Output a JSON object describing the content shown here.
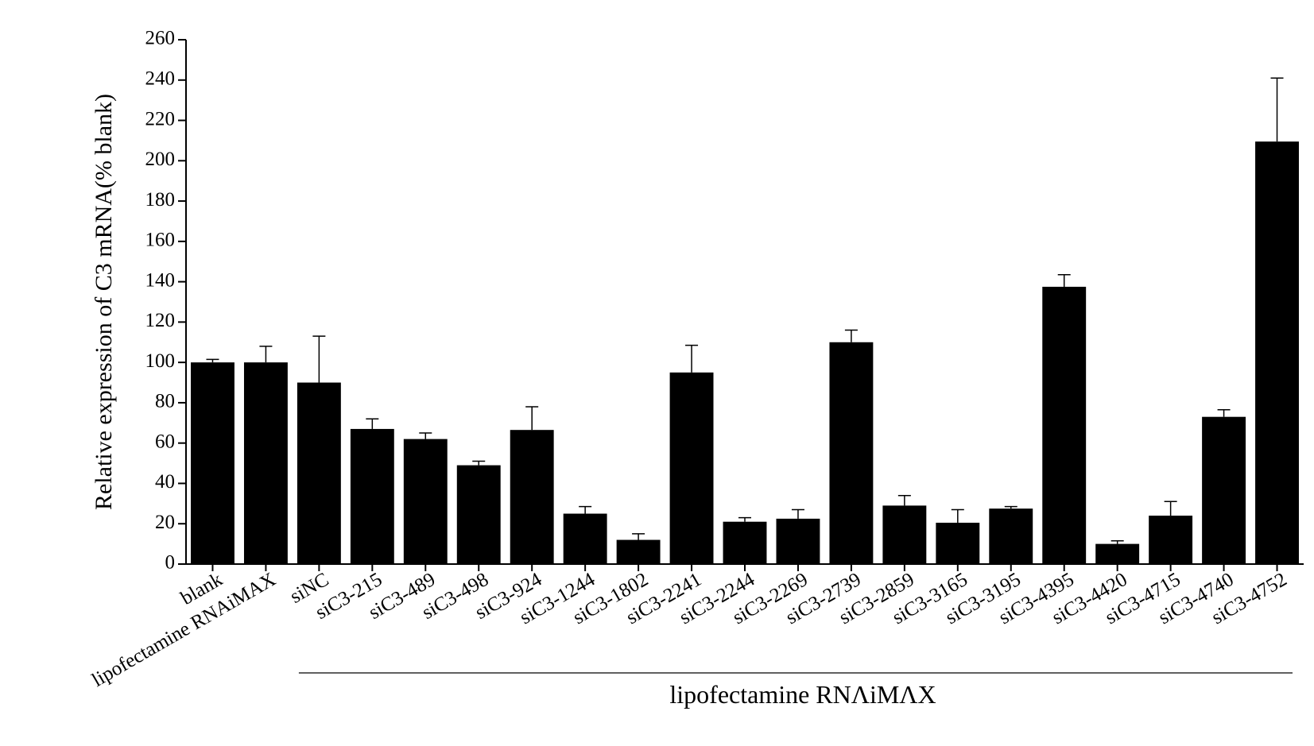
{
  "chart_data": {
    "type": "bar",
    "y_label": "Relative expression of C3 mRNA(% blank)",
    "group_label": "lipofectamine RNΛiMΛX",
    "categories": [
      "blank",
      "lipofectamine RNAiMAX",
      "siNC",
      "siC3-215",
      "siC3-489",
      "siC3-498",
      "siC3-924",
      "siC3-1244",
      "siC3-1802",
      "siC3-2241",
      "siC3-2244",
      "siC3-2269",
      "siC3-2739",
      "siC3-2859",
      "siC3-3165",
      "siC3-3195",
      "siC3-4395",
      "siC3-4420",
      "siC3-4715",
      "siC3-4740",
      "siC3-4752"
    ],
    "values": [
      100,
      100,
      90,
      67,
      62,
      49,
      66.5,
      25,
      12,
      95,
      21,
      22.5,
      110,
      29,
      20.5,
      27.5,
      137.5,
      10,
      24,
      73,
      209.5
    ],
    "errors": [
      1.5,
      8,
      23,
      5,
      3,
      2,
      11.5,
      3.5,
      3,
      13.5,
      2,
      4.5,
      6,
      5,
      6.5,
      1,
      6,
      1.5,
      7,
      3.5,
      31.5
    ],
    "color": "#000000",
    "ylim": [
      0,
      260
    ],
    "yticks": [
      0,
      20,
      40,
      60,
      80,
      100,
      120,
      140,
      160,
      180,
      200,
      220,
      240,
      260
    ],
    "group_start": 2
  }
}
